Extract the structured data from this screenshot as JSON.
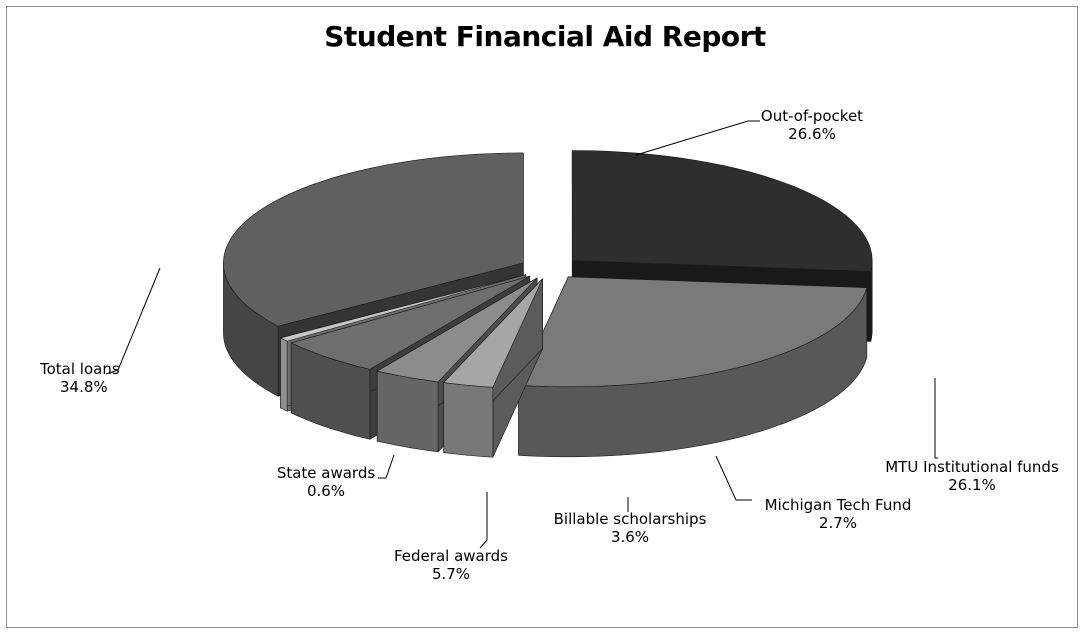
{
  "chart_data": {
    "type": "pie",
    "title": "Student Financial Aid Report",
    "style": "3d-exploded",
    "slices": [
      {
        "label": "Out-of-pocket",
        "percent_label": "26.6%",
        "value": 26.6,
        "color": "#2e2e2e"
      },
      {
        "label": "MTU Institutional funds",
        "percent_label": "26.1%",
        "value": 26.1,
        "color": "#7a7a7a"
      },
      {
        "label": "Michigan Tech Fund",
        "percent_label": "2.7%",
        "value": 2.7,
        "color": "#a6a6a6"
      },
      {
        "label": "Billable scholarships",
        "percent_label": "3.6%",
        "value": 3.6,
        "color": "#8c8c8c"
      },
      {
        "label": "Federal awards",
        "percent_label": "5.7%",
        "value": 5.7,
        "color": "#6e6e6e"
      },
      {
        "label": "State awards",
        "percent_label": "0.6%",
        "value": 0.6,
        "color": "#c8c8c8"
      },
      {
        "label": "Total loans",
        "percent_label": "34.8%",
        "value": 34.8,
        "color": "#606060"
      }
    ]
  }
}
